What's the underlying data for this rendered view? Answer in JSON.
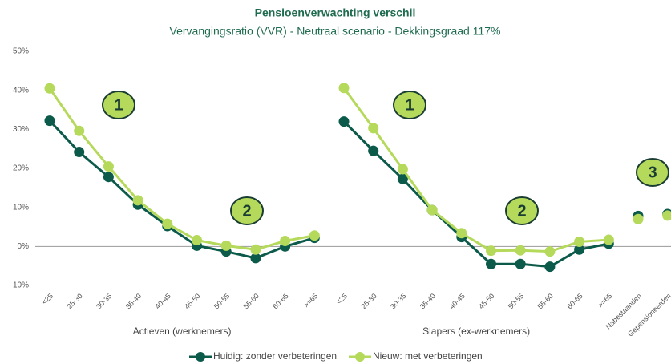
{
  "chart_data": {
    "type": "line",
    "title": "Pensioenverwachting verschil",
    "subtitle": "Vervangingsratio (VVR) - Neutraal scenario - Dekkingsgraad 117%",
    "ylim": [
      -10,
      50
    ],
    "yticks": [
      {
        "value": -10,
        "label": "-10%"
      },
      {
        "value": 0,
        "label": "0%"
      },
      {
        "value": 10,
        "label": "10%"
      },
      {
        "value": 20,
        "label": "20%"
      },
      {
        "value": 30,
        "label": "30%"
      },
      {
        "value": 40,
        "label": "40%"
      },
      {
        "value": 50,
        "label": "50%"
      }
    ],
    "groups": [
      {
        "name": "Actieven (werknemers)",
        "connected": true,
        "categories": [
          "<25",
          "25-30",
          "30-35",
          "35-40",
          "40-45",
          "45-50",
          "50-55",
          "55-60",
          "60-65",
          ">=65"
        ]
      },
      {
        "name": "Slapers (ex-werknemers)",
        "connected": true,
        "categories": [
          "<25",
          "25-30",
          "30-35",
          "35-40",
          "40-45",
          "45-50",
          "50-55",
          "55-60",
          "60-65",
          ">=65"
        ]
      },
      {
        "connected": false,
        "categories": [
          "Nabestaanden",
          "Gepensioneerden"
        ]
      }
    ],
    "series": [
      {
        "name": "Huidig: zonder verbeteringen",
        "color": "#0b5a4a",
        "values": [
          [
            32.2,
            24.2,
            17.8,
            10.7,
            5.2,
            0.2,
            -1.3,
            -3.0,
            0.0,
            2.2
          ],
          [
            32.0,
            24.5,
            17.3,
            9.3,
            2.4,
            -4.5,
            -4.5,
            -5.2,
            -0.8,
            0.7
          ],
          [
            7.8,
            8.3
          ]
        ]
      },
      {
        "name": "Nieuw: met verbeteringen",
        "color": "#b5d95a",
        "values": [
          [
            40.5,
            29.6,
            20.5,
            11.8,
            5.8,
            1.6,
            0.2,
            -0.8,
            1.4,
            2.8
          ],
          [
            40.6,
            30.3,
            19.8,
            9.3,
            3.4,
            -1.1,
            -1.0,
            -1.3,
            1.2,
            1.7
          ],
          [
            7.0,
            7.9
          ]
        ]
      }
    ],
    "annotations": [
      "1",
      "2",
      "1",
      "2",
      "3"
    ],
    "legend": "bottom"
  }
}
